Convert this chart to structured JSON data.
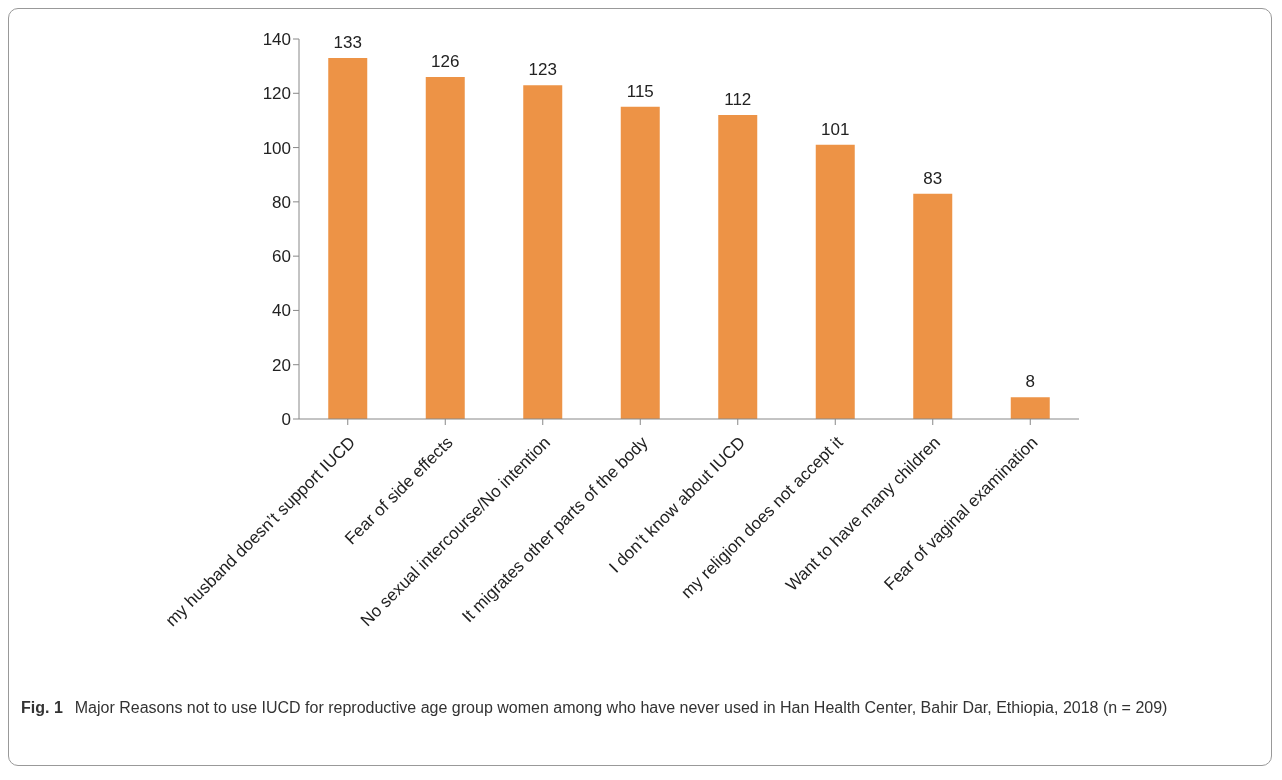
{
  "chart_data": {
    "type": "bar",
    "categories": [
      "my husband doesn’t support IUCD",
      "Fear of side effects",
      "No sexual intercourse/No intention",
      "It migrates other parts of the body",
      "I don’t know about IUCD",
      "my religion does not accept it",
      "Want to have many children",
      "Fear of vaginal examination"
    ],
    "values": [
      133,
      126,
      123,
      115,
      112,
      101,
      83,
      8
    ],
    "color": "#ed9346",
    "ylim": [
      0,
      140
    ],
    "yticks": [
      0,
      20,
      40,
      60,
      80,
      100,
      120,
      140
    ],
    "grid": false,
    "legend": false,
    "data_labels": true,
    "annotations": [
      "Fig. 1",
      "Major Reasons not to use IUCD for reproductive age group women among who have never used in Han Health Center, Bahir Dar, Ethiopia, 2018 (n = 209)"
    ]
  }
}
